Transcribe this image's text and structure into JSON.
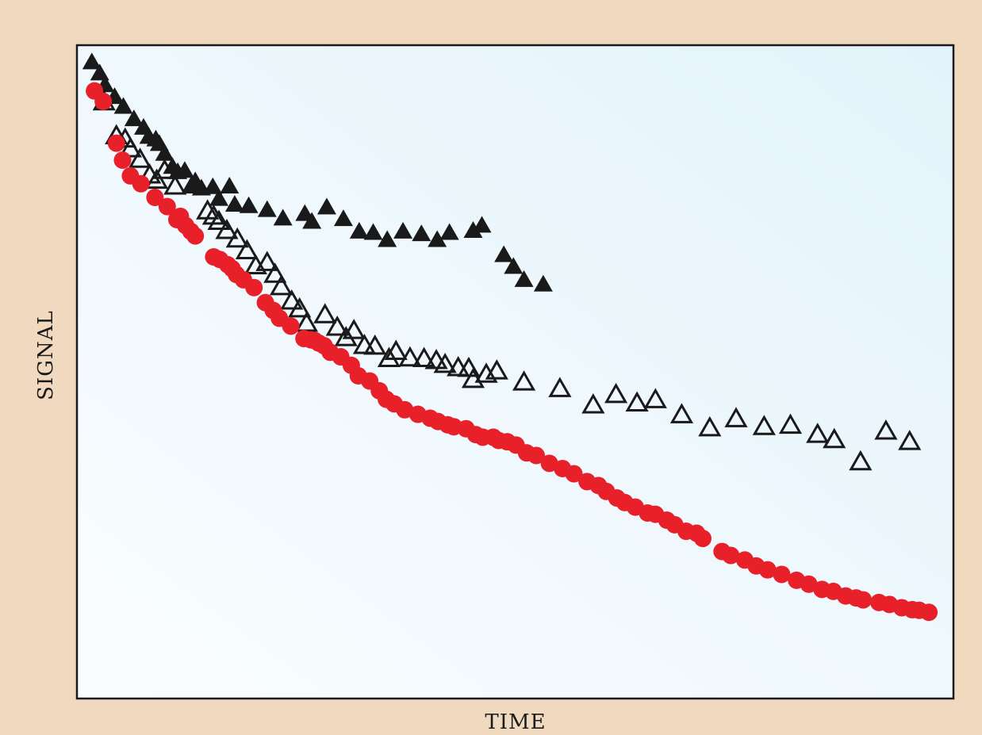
{
  "chart_data": {
    "type": "scatter",
    "xlabel": "TIME",
    "ylabel": "SIGNAL",
    "xlim": [
      0,
      100
    ],
    "ylim": [
      0,
      100
    ],
    "grid": false,
    "colors": {
      "black": "#1a1a1a",
      "red": "#e8202a",
      "blue": "#14a6e1",
      "plot_bg_top": "#e3f3fb",
      "plot_bg_bottom": "#fafdff"
    },
    "series": [
      {
        "marker": "triangle-filled",
        "color": "#1a1a1a",
        "points": [
          [
            1.7,
            97.4
          ],
          [
            2.6,
            95.7
          ],
          [
            3.2,
            93.9
          ],
          [
            4.3,
            92.1
          ],
          [
            5.3,
            90.6
          ],
          [
            6.5,
            88.7
          ],
          [
            7.6,
            87.4
          ],
          [
            8.2,
            86.0
          ],
          [
            9.0,
            85.6
          ],
          [
            9.4,
            84.9
          ],
          [
            10.0,
            83.4
          ],
          [
            10.9,
            81.4
          ],
          [
            11.5,
            80.6
          ],
          [
            12.3,
            80.8
          ],
          [
            13.0,
            78.4
          ],
          [
            13.5,
            79.2
          ],
          [
            14.2,
            78.1
          ],
          [
            15.5,
            78.3
          ],
          [
            16.2,
            76.5
          ],
          [
            17.4,
            78.4
          ],
          [
            18.0,
            75.6
          ],
          [
            19.6,
            75.4
          ],
          [
            21.7,
            74.8
          ],
          [
            23.5,
            73.5
          ],
          [
            26.0,
            74.2
          ],
          [
            26.8,
            73.0
          ],
          [
            28.5,
            75.2
          ],
          [
            30.4,
            73.4
          ],
          [
            32.2,
            71.5
          ],
          [
            33.8,
            71.3
          ],
          [
            35.4,
            70.2
          ],
          [
            37.2,
            71.5
          ],
          [
            39.3,
            71.1
          ],
          [
            41.1,
            70.2
          ],
          [
            42.5,
            71.3
          ],
          [
            45.2,
            71.6
          ],
          [
            46.2,
            72.4
          ],
          [
            48.7,
            67.9
          ],
          [
            49.8,
            66.1
          ],
          [
            51.0,
            64.1
          ],
          [
            53.2,
            63.4
          ]
        ]
      },
      {
        "marker": "triangle-open",
        "color": "#1a1a1a",
        "points": [
          [
            3.1,
            91.3
          ],
          [
            4.5,
            86.1
          ],
          [
            5.5,
            85.6
          ],
          [
            6.1,
            84.1
          ],
          [
            7.2,
            82.5
          ],
          [
            8.3,
            80.1
          ],
          [
            9.1,
            79.3
          ],
          [
            10.0,
            80.8
          ],
          [
            11.2,
            78.4
          ],
          [
            14.9,
            74.6
          ],
          [
            15.6,
            73.8
          ],
          [
            16.2,
            73.0
          ],
          [
            17.1,
            71.6
          ],
          [
            18.3,
            70.3
          ],
          [
            19.4,
            68.5
          ],
          [
            20.4,
            66.2
          ],
          [
            21.7,
            66.7
          ],
          [
            22.6,
            64.9
          ],
          [
            23.3,
            63.0
          ],
          [
            24.5,
            60.8
          ],
          [
            25.4,
            59.6
          ],
          [
            26.2,
            57.4
          ],
          [
            28.3,
            58.7
          ],
          [
            29.7,
            56.8
          ],
          [
            30.7,
            55.2
          ],
          [
            31.6,
            56.3
          ],
          [
            32.8,
            54.0
          ],
          [
            34.0,
            53.9
          ],
          [
            35.6,
            52.0
          ],
          [
            36.4,
            53.1
          ],
          [
            38.0,
            52.1
          ],
          [
            39.6,
            52.0
          ],
          [
            41.0,
            51.7
          ],
          [
            42.0,
            51.1
          ],
          [
            43.5,
            50.6
          ],
          [
            44.7,
            50.5
          ],
          [
            45.2,
            48.8
          ],
          [
            46.7,
            49.6
          ],
          [
            47.9,
            50.1
          ],
          [
            51.0,
            48.4
          ],
          [
            55.1,
            47.4
          ],
          [
            58.9,
            44.9
          ],
          [
            61.5,
            46.5
          ],
          [
            63.9,
            45.2
          ],
          [
            66.0,
            45.7
          ],
          [
            69.0,
            43.4
          ],
          [
            72.2,
            41.4
          ],
          [
            75.2,
            42.8
          ],
          [
            78.4,
            41.6
          ],
          [
            81.4,
            41.8
          ],
          [
            84.5,
            40.4
          ],
          [
            86.4,
            39.6
          ],
          [
            89.4,
            36.2
          ],
          [
            92.3,
            40.9
          ],
          [
            95.0,
            39.3
          ]
        ]
      },
      {
        "marker": "circle-filled",
        "color": "#e8202a",
        "points": [
          [
            2.0,
            93.0
          ],
          [
            3.0,
            91.4
          ],
          [
            4.5,
            85.0
          ],
          [
            5.2,
            82.4
          ],
          [
            6.1,
            80.0
          ],
          [
            7.3,
            78.8
          ],
          [
            8.9,
            76.7
          ],
          [
            10.3,
            75.3
          ],
          [
            11.4,
            73.3
          ],
          [
            11.8,
            73.8
          ],
          [
            12.4,
            72.4
          ],
          [
            13.0,
            71.5
          ],
          [
            13.5,
            70.8
          ],
          [
            15.6,
            67.6
          ],
          [
            16.3,
            67.2
          ],
          [
            17.2,
            66.4
          ],
          [
            17.7,
            65.8
          ],
          [
            18.2,
            64.9
          ],
          [
            19.0,
            64.1
          ],
          [
            20.2,
            62.9
          ],
          [
            21.5,
            60.6
          ],
          [
            22.4,
            59.4
          ],
          [
            23.1,
            58.2
          ],
          [
            24.4,
            57.0
          ],
          [
            25.9,
            55.1
          ],
          [
            26.7,
            54.9
          ],
          [
            27.1,
            54.8
          ],
          [
            27.6,
            54.4
          ],
          [
            28.2,
            54.0
          ],
          [
            28.9,
            53.0
          ],
          [
            30.1,
            52.3
          ],
          [
            31.3,
            51.0
          ],
          [
            32.1,
            49.4
          ],
          [
            33.4,
            48.6
          ],
          [
            34.5,
            47.1
          ],
          [
            35.3,
            45.8
          ],
          [
            36.2,
            45.1
          ],
          [
            37.4,
            44.2
          ],
          [
            38.9,
            43.5
          ],
          [
            40.3,
            42.9
          ],
          [
            41.2,
            42.4
          ],
          [
            42.3,
            41.9
          ],
          [
            43.0,
            41.6
          ],
          [
            44.4,
            41.3
          ],
          [
            45.5,
            40.4
          ],
          [
            46.3,
            40.0
          ],
          [
            47.5,
            40.0
          ],
          [
            48.1,
            39.5
          ],
          [
            49.1,
            39.3
          ],
          [
            50.1,
            38.8
          ],
          [
            51.3,
            37.6
          ],
          [
            52.4,
            37.2
          ],
          [
            53.9,
            36.0
          ],
          [
            55.4,
            35.2
          ],
          [
            56.7,
            34.4
          ],
          [
            58.2,
            33.2
          ],
          [
            59.5,
            32.6
          ],
          [
            60.4,
            31.7
          ],
          [
            61.6,
            30.7
          ],
          [
            62.5,
            30.0
          ],
          [
            63.7,
            29.3
          ],
          [
            65.1,
            28.4
          ],
          [
            66.0,
            28.2
          ],
          [
            67.3,
            27.3
          ],
          [
            68.2,
            26.6
          ],
          [
            69.5,
            25.6
          ],
          [
            70.7,
            25.3
          ],
          [
            71.4,
            24.5
          ],
          [
            73.6,
            22.5
          ],
          [
            74.6,
            21.9
          ],
          [
            76.2,
            21.2
          ],
          [
            77.5,
            20.3
          ],
          [
            78.8,
            19.7
          ],
          [
            80.4,
            19.0
          ],
          [
            82.1,
            18.1
          ],
          [
            83.5,
            17.5
          ],
          [
            85.0,
            16.7
          ],
          [
            86.3,
            16.4
          ],
          [
            87.7,
            15.7
          ],
          [
            88.9,
            15.4
          ],
          [
            89.7,
            15.1
          ],
          [
            91.5,
            14.7
          ],
          [
            92.7,
            14.4
          ],
          [
            94.1,
            13.9
          ],
          [
            95.3,
            13.6
          ],
          [
            96.1,
            13.5
          ],
          [
            97.2,
            13.2
          ]
        ]
      }
    ]
  }
}
